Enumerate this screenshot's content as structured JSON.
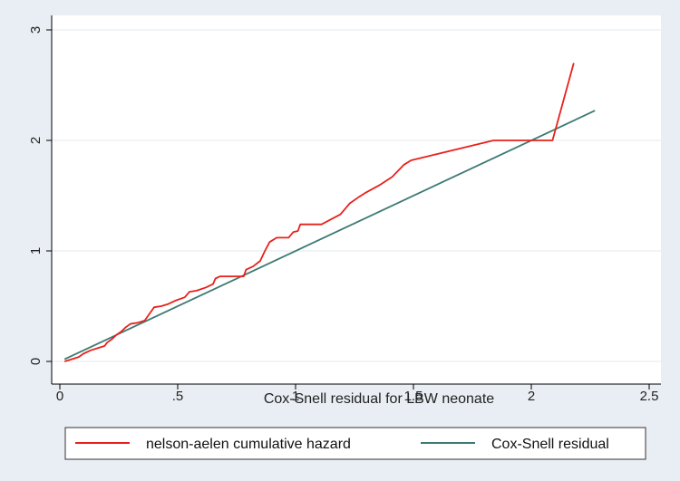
{
  "chart_data": {
    "type": "line",
    "xlabel": "Cox-Snell residual for LBW neonate",
    "ylabel": "",
    "xlim": [
      0,
      2.5
    ],
    "ylim": [
      0,
      3
    ],
    "x_ticks": [
      {
        "value": 0,
        "label": "0"
      },
      {
        "value": 0.5,
        "label": ".5"
      },
      {
        "value": 1,
        "label": "1"
      },
      {
        "value": 1.5,
        "label": "1.5"
      },
      {
        "value": 2,
        "label": "2"
      },
      {
        "value": 2.5,
        "label": "2.5"
      }
    ],
    "y_ticks": [
      {
        "value": 0,
        "label": "0"
      },
      {
        "value": 1,
        "label": "1"
      },
      {
        "value": 2,
        "label": "2"
      },
      {
        "value": 3,
        "label": "3"
      }
    ],
    "grid": "horizontal",
    "legend_position": "bottom",
    "series": [
      {
        "name": "nelson-aelen cumulative hazard",
        "color": "#e8211b",
        "points": [
          [
            0.02,
            0.0
          ],
          [
            0.05,
            0.02
          ],
          [
            0.08,
            0.04
          ],
          [
            0.1,
            0.07
          ],
          [
            0.13,
            0.1
          ],
          [
            0.16,
            0.12
          ],
          [
            0.19,
            0.14
          ],
          [
            0.2,
            0.17
          ],
          [
            0.22,
            0.2
          ],
          [
            0.24,
            0.24
          ],
          [
            0.26,
            0.27
          ],
          [
            0.28,
            0.31
          ],
          [
            0.3,
            0.34
          ],
          [
            0.33,
            0.35
          ],
          [
            0.36,
            0.37
          ],
          [
            0.38,
            0.43
          ],
          [
            0.4,
            0.49
          ],
          [
            0.43,
            0.5
          ],
          [
            0.46,
            0.52
          ],
          [
            0.49,
            0.55
          ],
          [
            0.53,
            0.58
          ],
          [
            0.55,
            0.63
          ],
          [
            0.58,
            0.64
          ],
          [
            0.62,
            0.67
          ],
          [
            0.65,
            0.7
          ],
          [
            0.66,
            0.75
          ],
          [
            0.68,
            0.77
          ],
          [
            0.78,
            0.77
          ],
          [
            0.79,
            0.83
          ],
          [
            0.82,
            0.86
          ],
          [
            0.85,
            0.91
          ],
          [
            0.87,
            1.0
          ],
          [
            0.89,
            1.08
          ],
          [
            0.92,
            1.12
          ],
          [
            0.97,
            1.12
          ],
          [
            0.99,
            1.17
          ],
          [
            1.01,
            1.18
          ],
          [
            1.02,
            1.24
          ],
          [
            1.11,
            1.24
          ],
          [
            1.19,
            1.33
          ],
          [
            1.23,
            1.43
          ],
          [
            1.27,
            1.49
          ],
          [
            1.3,
            1.53
          ],
          [
            1.36,
            1.6
          ],
          [
            1.41,
            1.67
          ],
          [
            1.46,
            1.78
          ],
          [
            1.49,
            1.82
          ],
          [
            1.84,
            2.0
          ],
          [
            2.09,
            2.0
          ],
          [
            2.18,
            2.7
          ]
        ]
      },
      {
        "name": "Cox-Snell residual",
        "color": "#3d7a73",
        "points": [
          [
            0.02,
            0.02
          ],
          [
            2.27,
            2.27
          ]
        ]
      }
    ]
  }
}
